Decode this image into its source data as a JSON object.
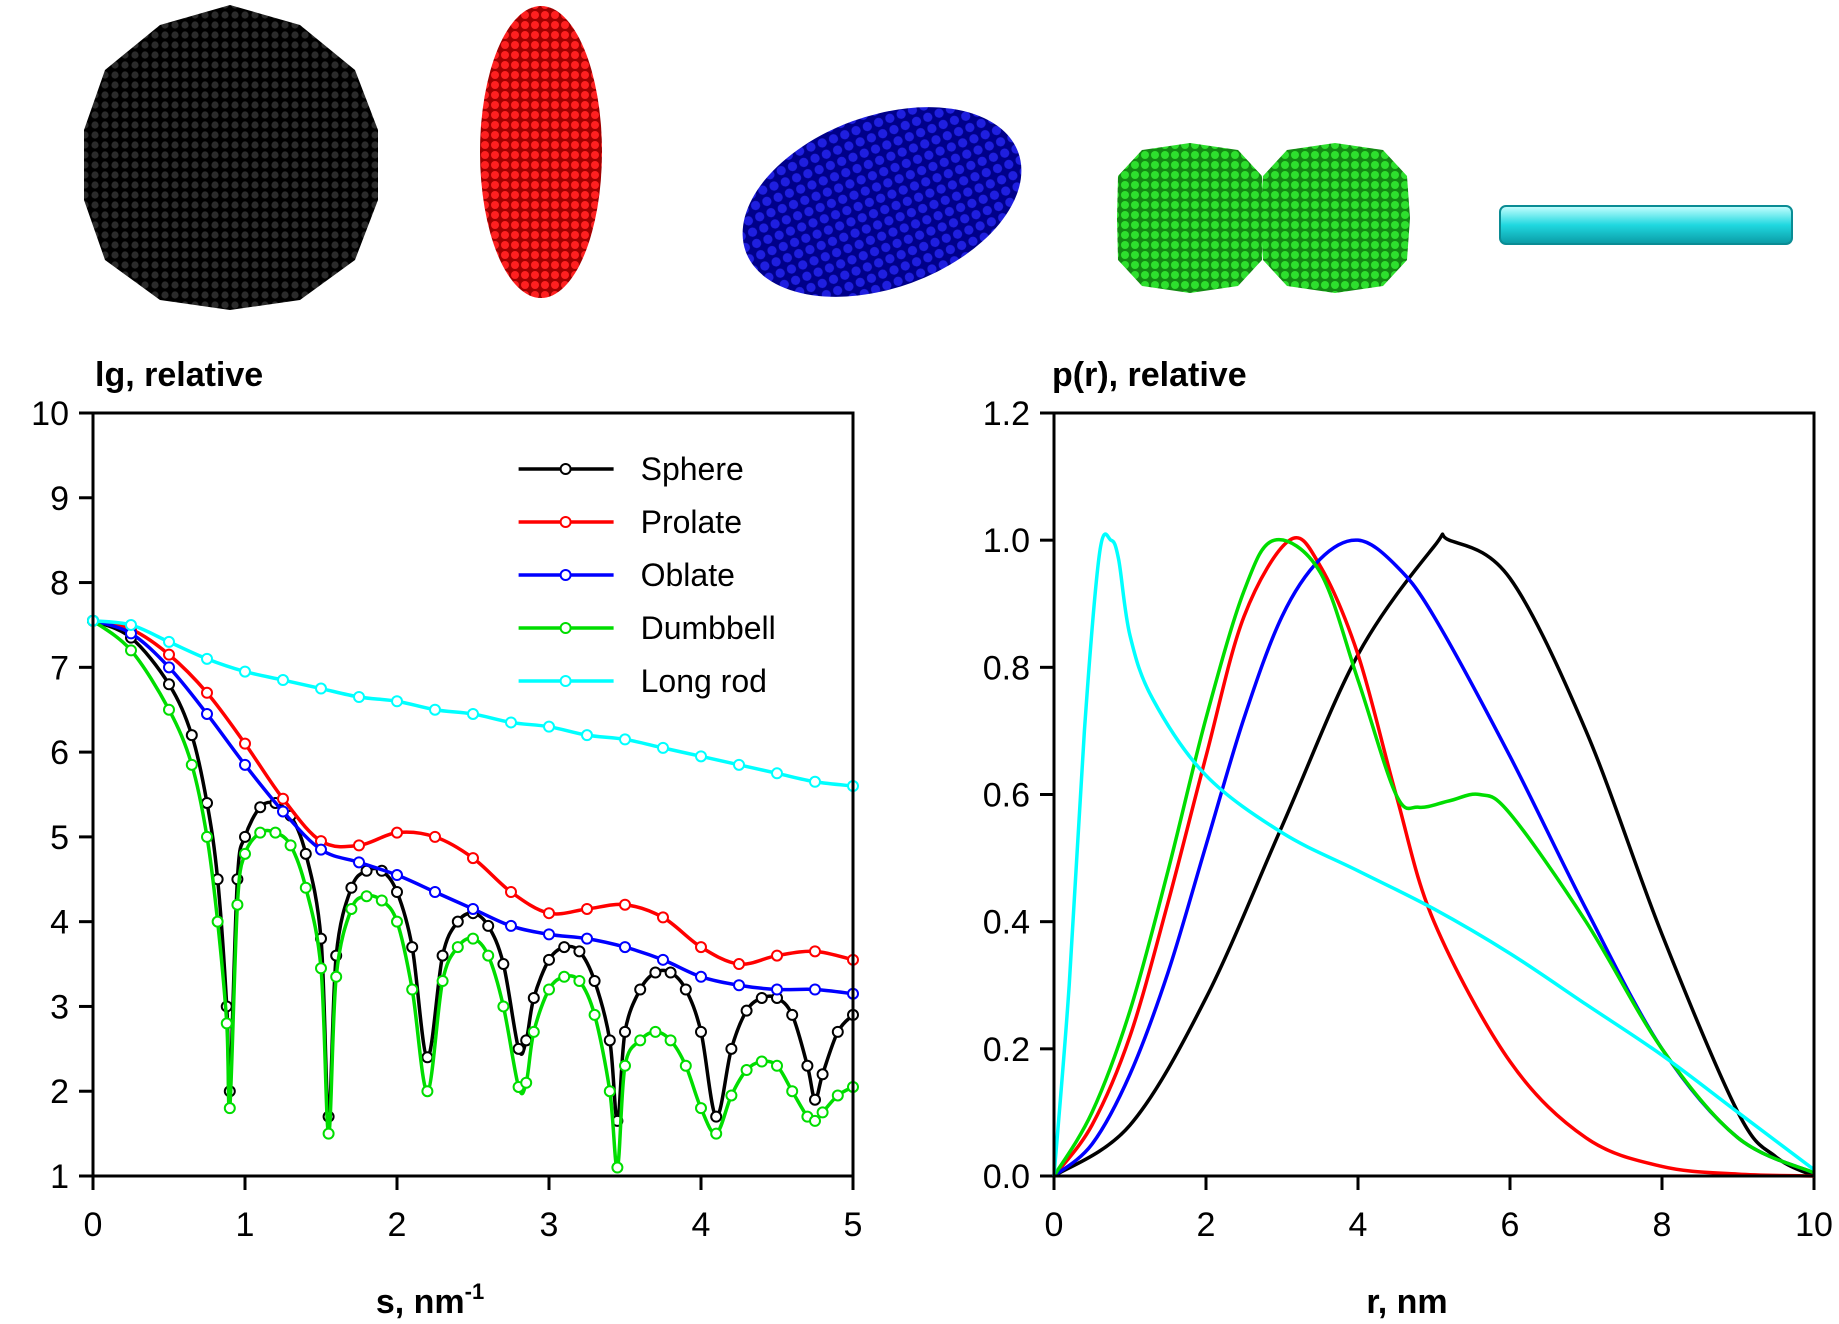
{
  "shapes": [
    {
      "name": "sphere-model",
      "color": "#111111"
    },
    {
      "name": "prolate-model",
      "color": "#e01e1e"
    },
    {
      "name": "oblate-model",
      "color": "#1a1acc"
    },
    {
      "name": "dumbbell-model",
      "color": "#22c022"
    },
    {
      "name": "rod-model",
      "color": "#22d4e0"
    }
  ],
  "chart_data": [
    {
      "type": "line",
      "title": "lg, relative",
      "xlabel": "s, nm",
      "xlabel_sup": "-1",
      "ylabel": "",
      "xlim": [
        0,
        5
      ],
      "ylim": [
        1,
        10
      ],
      "xticks": [
        "0",
        "1",
        "2",
        "3",
        "4",
        "5"
      ],
      "yticks": [
        "1",
        "2",
        "3",
        "4",
        "5",
        "6",
        "7",
        "8",
        "9",
        "10"
      ],
      "legend": "top-right",
      "series": [
        {
          "name": "Sphere",
          "color": "#000000",
          "marker": "circle",
          "x": [
            0,
            0.25,
            0.5,
            0.65,
            0.75,
            0.82,
            0.88,
            0.9,
            0.95,
            1.0,
            1.1,
            1.2,
            1.3,
            1.4,
            1.5,
            1.55,
            1.6,
            1.7,
            1.8,
            1.9,
            2.0,
            2.1,
            2.2,
            2.3,
            2.4,
            2.5,
            2.6,
            2.7,
            2.8,
            2.85,
            2.9,
            3.0,
            3.1,
            3.2,
            3.3,
            3.4,
            3.45,
            3.5,
            3.6,
            3.7,
            3.8,
            3.9,
            4.0,
            4.1,
            4.2,
            4.3,
            4.4,
            4.5,
            4.6,
            4.7,
            4.75,
            4.8,
            4.9,
            5.0
          ],
          "y": [
            7.55,
            7.35,
            6.8,
            6.2,
            5.4,
            4.5,
            3.0,
            2.0,
            4.5,
            5.0,
            5.35,
            5.4,
            5.25,
            4.8,
            3.8,
            1.7,
            3.6,
            4.4,
            4.6,
            4.6,
            4.35,
            3.7,
            2.4,
            3.6,
            4.0,
            4.1,
            3.95,
            3.5,
            2.5,
            2.6,
            3.1,
            3.55,
            3.7,
            3.65,
            3.3,
            2.6,
            1.65,
            2.7,
            3.2,
            3.4,
            3.4,
            3.2,
            2.7,
            1.7,
            2.5,
            2.95,
            3.1,
            3.1,
            2.9,
            2.3,
            1.9,
            2.2,
            2.7,
            2.9
          ]
        },
        {
          "name": "Prolate",
          "color": "#ff0000",
          "marker": "circle",
          "x": [
            0,
            0.25,
            0.5,
            0.75,
            1.0,
            1.25,
            1.5,
            1.75,
            2.0,
            2.25,
            2.5,
            2.75,
            3.0,
            3.25,
            3.5,
            3.75,
            4.0,
            4.25,
            4.5,
            4.75,
            5.0
          ],
          "y": [
            7.55,
            7.45,
            7.15,
            6.7,
            6.1,
            5.45,
            4.95,
            4.9,
            5.05,
            5.0,
            4.75,
            4.35,
            4.1,
            4.15,
            4.2,
            4.05,
            3.7,
            3.5,
            3.6,
            3.65,
            3.55
          ]
        },
        {
          "name": "Oblate",
          "color": "#0000ff",
          "marker": "circle",
          "x": [
            0,
            0.25,
            0.5,
            0.75,
            1.0,
            1.25,
            1.5,
            1.75,
            2.0,
            2.25,
            2.5,
            2.75,
            3.0,
            3.25,
            3.5,
            3.75,
            4.0,
            4.25,
            4.5,
            4.75,
            5.0
          ],
          "y": [
            7.55,
            7.4,
            7.0,
            6.45,
            5.85,
            5.3,
            4.85,
            4.7,
            4.55,
            4.35,
            4.15,
            3.95,
            3.85,
            3.8,
            3.7,
            3.55,
            3.35,
            3.25,
            3.2,
            3.2,
            3.15
          ]
        },
        {
          "name": "Dumbbell",
          "color": "#00dd00",
          "marker": "circle",
          "x": [
            0,
            0.25,
            0.5,
            0.65,
            0.75,
            0.82,
            0.88,
            0.9,
            0.95,
            1.0,
            1.1,
            1.2,
            1.3,
            1.4,
            1.5,
            1.55,
            1.6,
            1.7,
            1.8,
            1.9,
            2.0,
            2.1,
            2.2,
            2.3,
            2.4,
            2.5,
            2.6,
            2.7,
            2.8,
            2.85,
            2.9,
            3.0,
            3.1,
            3.2,
            3.3,
            3.4,
            3.45,
            3.5,
            3.6,
            3.7,
            3.8,
            3.9,
            4.0,
            4.1,
            4.2,
            4.3,
            4.4,
            4.5,
            4.6,
            4.7,
            4.75,
            4.8,
            4.9,
            5.0
          ],
          "y": [
            7.55,
            7.2,
            6.5,
            5.85,
            5.0,
            4.0,
            2.8,
            1.8,
            4.2,
            4.8,
            5.05,
            5.05,
            4.9,
            4.4,
            3.45,
            1.5,
            3.35,
            4.15,
            4.3,
            4.25,
            4.0,
            3.2,
            2.0,
            3.3,
            3.7,
            3.8,
            3.6,
            3.0,
            2.05,
            2.1,
            2.7,
            3.2,
            3.35,
            3.3,
            2.9,
            2.0,
            1.1,
            2.3,
            2.6,
            2.7,
            2.6,
            2.3,
            1.8,
            1.5,
            1.95,
            2.25,
            2.35,
            2.3,
            2.0,
            1.7,
            1.65,
            1.75,
            1.95,
            2.05
          ]
        },
        {
          "name": "Long rod",
          "color": "#00ffff",
          "marker": "circle",
          "x": [
            0,
            0.25,
            0.5,
            0.75,
            1.0,
            1.25,
            1.5,
            1.75,
            2.0,
            2.25,
            2.5,
            2.75,
            3.0,
            3.25,
            3.5,
            3.75,
            4.0,
            4.25,
            4.5,
            4.75,
            5.0
          ],
          "y": [
            7.55,
            7.5,
            7.3,
            7.1,
            6.95,
            6.85,
            6.75,
            6.65,
            6.6,
            6.5,
            6.45,
            6.35,
            6.3,
            6.2,
            6.15,
            6.05,
            5.95,
            5.85,
            5.75,
            5.65,
            5.6
          ]
        }
      ]
    },
    {
      "type": "line",
      "title": "p(r), relative",
      "xlabel": "r, nm",
      "ylabel": "",
      "xlim": [
        0,
        10
      ],
      "ylim": [
        0,
        1.2
      ],
      "xticks": [
        "0",
        "2",
        "4",
        "6",
        "8",
        "10"
      ],
      "yticks": [
        "0.0",
        "0.2",
        "0.4",
        "0.6",
        "0.8",
        "1.0",
        "1.2"
      ],
      "series": [
        {
          "color": "#000000",
          "x": [
            0,
            1,
            2,
            3,
            4,
            5,
            5.2,
            6,
            7,
            8,
            9,
            9.5,
            10
          ],
          "y": [
            0,
            0.08,
            0.28,
            0.55,
            0.82,
            0.99,
            1.0,
            0.94,
            0.7,
            0.38,
            0.1,
            0.03,
            0.0
          ]
        },
        {
          "color": "#ff0000",
          "x": [
            0,
            0.5,
            1,
            1.5,
            2,
            2.5,
            3.1,
            3.5,
            4,
            4.5,
            5,
            6,
            7,
            8,
            9,
            10
          ],
          "y": [
            0,
            0.08,
            0.22,
            0.43,
            0.66,
            0.88,
            1.0,
            0.96,
            0.82,
            0.6,
            0.4,
            0.18,
            0.06,
            0.015,
            0.003,
            0.0
          ]
        },
        {
          "color": "#0000ff",
          "x": [
            0,
            0.5,
            1,
            1.5,
            2,
            2.5,
            3,
            3.5,
            4,
            4.5,
            5,
            6,
            7,
            8,
            9,
            10
          ],
          "y": [
            0,
            0.05,
            0.16,
            0.32,
            0.52,
            0.72,
            0.88,
            0.97,
            1.0,
            0.96,
            0.88,
            0.66,
            0.42,
            0.2,
            0.06,
            0.005
          ]
        },
        {
          "color": "#00dd00",
          "x": [
            0,
            0.5,
            1,
            1.5,
            2,
            2.5,
            2.9,
            3.5,
            4,
            4.5,
            4.8,
            5.2,
            5.6,
            6,
            7,
            8,
            9,
            10
          ],
          "y": [
            0,
            0.1,
            0.26,
            0.48,
            0.72,
            0.92,
            1.0,
            0.95,
            0.78,
            0.6,
            0.58,
            0.59,
            0.6,
            0.57,
            0.4,
            0.2,
            0.06,
            0.005
          ]
        },
        {
          "color": "#00ffff",
          "x": [
            0,
            0.2,
            0.4,
            0.6,
            0.75,
            0.85,
            1.0,
            1.3,
            2,
            3,
            4,
            5,
            6,
            7,
            8,
            9,
            10
          ],
          "y": [
            0,
            0.3,
            0.7,
            0.98,
            1.0,
            0.97,
            0.85,
            0.75,
            0.63,
            0.54,
            0.48,
            0.42,
            0.35,
            0.27,
            0.19,
            0.1,
            0.01
          ]
        }
      ]
    }
  ]
}
